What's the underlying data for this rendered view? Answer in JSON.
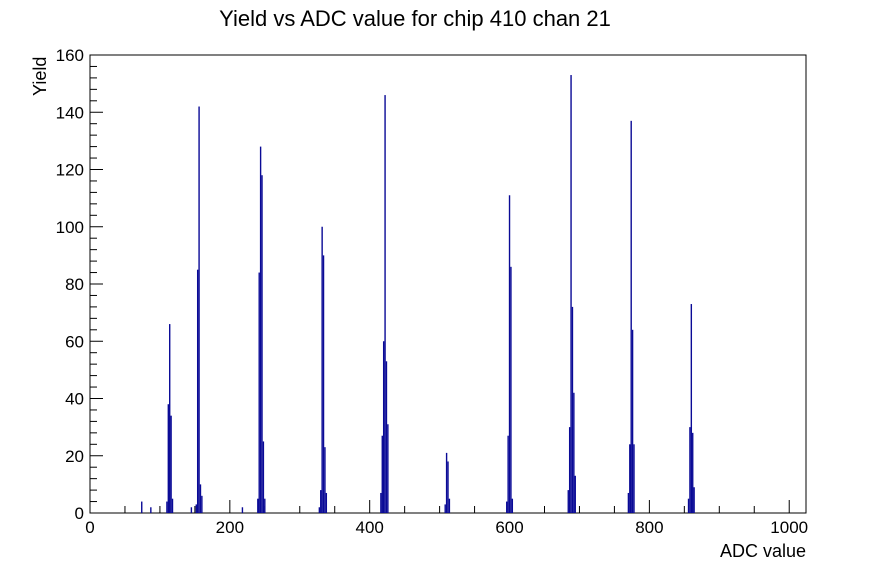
{
  "title": "Yield vs ADC value for chip 410 chan 21",
  "chart_data": {
    "type": "bar",
    "title": "Yield vs ADC value for chip 410 chan 21",
    "xlabel": "ADC value",
    "ylabel": "Yield",
    "xlim": [
      0,
      1024
    ],
    "ylim": [
      0,
      160
    ],
    "grid": false,
    "legend": "none",
    "x_major_ticks": [
      0,
      200,
      400,
      600,
      800,
      1000
    ],
    "x_tick_labels": [
      "0",
      "200",
      "400",
      "600",
      "800",
      "1000"
    ],
    "x_minor_tick_step": 50,
    "y_major_ticks": [
      0,
      20,
      40,
      60,
      80,
      100,
      120,
      140,
      160
    ],
    "y_tick_labels": [
      "0",
      "20",
      "40",
      "60",
      "80",
      "100",
      "120",
      "140",
      "160"
    ],
    "y_minor_tick_step": 4,
    "bar_color": "#0a0a96",
    "axis_color": "#000000",
    "bin_width_adc": 2,
    "bins": [
      [
        74,
        4
      ],
      [
        87,
        2
      ],
      [
        110,
        4
      ],
      [
        112,
        38
      ],
      [
        114,
        66
      ],
      [
        116,
        34
      ],
      [
        118,
        5
      ],
      [
        145,
        2
      ],
      [
        152,
        3
      ],
      [
        154,
        85
      ],
      [
        156,
        142
      ],
      [
        158,
        10
      ],
      [
        160,
        6
      ],
      [
        218,
        2
      ],
      [
        240,
        5
      ],
      [
        242,
        84
      ],
      [
        244,
        128
      ],
      [
        246,
        118
      ],
      [
        248,
        25
      ],
      [
        250,
        5
      ],
      [
        328,
        2
      ],
      [
        330,
        8
      ],
      [
        332,
        100
      ],
      [
        334,
        90
      ],
      [
        336,
        23
      ],
      [
        338,
        7
      ],
      [
        416,
        7
      ],
      [
        418,
        27
      ],
      [
        420,
        60
      ],
      [
        422,
        146
      ],
      [
        424,
        53
      ],
      [
        426,
        31
      ],
      [
        508,
        3
      ],
      [
        510,
        21
      ],
      [
        512,
        18
      ],
      [
        514,
        5
      ],
      [
        596,
        4
      ],
      [
        598,
        27
      ],
      [
        600,
        111
      ],
      [
        602,
        86
      ],
      [
        604,
        5
      ],
      [
        684,
        8
      ],
      [
        686,
        30
      ],
      [
        688,
        153
      ],
      [
        690,
        72
      ],
      [
        692,
        42
      ],
      [
        694,
        13
      ],
      [
        770,
        7
      ],
      [
        772,
        24
      ],
      [
        774,
        137
      ],
      [
        776,
        64
      ],
      [
        778,
        24
      ],
      [
        856,
        5
      ],
      [
        858,
        30
      ],
      [
        860,
        73
      ],
      [
        862,
        28
      ],
      [
        864,
        9
      ]
    ]
  }
}
